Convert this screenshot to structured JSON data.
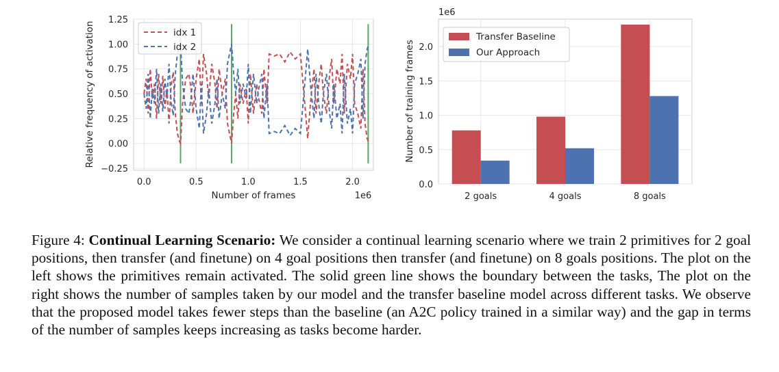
{
  "chart_data": [
    {
      "type": "line",
      "xlabel": "Number of frames",
      "ylabel": "Relative frequency of activation",
      "x_multiplier": "1e6",
      "xlim": [
        -0.1,
        2.2
      ],
      "ylim": [
        -0.27,
        1.25
      ],
      "xticks": [
        "0.0",
        "0.5",
        "1.0",
        "1.5",
        "2.0"
      ],
      "yticks": [
        "−0.25",
        "0.00",
        "0.25",
        "0.50",
        "0.75",
        "1.00",
        "1.25"
      ],
      "task_boundaries": [
        0.35,
        0.84,
        2.15
      ],
      "boundary_color": "#55a868",
      "legend": [
        "idx 1",
        "idx 2"
      ],
      "series": [
        {
          "name": "idx 1",
          "color": "#c44e52",
          "x": [
            0.0,
            0.02,
            0.04,
            0.06,
            0.08,
            0.1,
            0.12,
            0.14,
            0.16,
            0.18,
            0.2,
            0.22,
            0.24,
            0.26,
            0.28,
            0.3,
            0.32,
            0.34,
            0.35,
            0.37,
            0.4,
            0.43,
            0.45,
            0.47,
            0.5,
            0.53,
            0.55,
            0.57,
            0.6,
            0.62,
            0.65,
            0.68,
            0.7,
            0.72,
            0.75,
            0.78,
            0.8,
            0.82,
            0.84,
            0.86,
            0.88,
            0.9,
            0.92,
            0.95,
            0.98,
            1.0,
            1.02,
            1.05,
            1.08,
            1.1,
            1.13,
            1.15,
            1.18,
            1.2,
            1.25,
            1.3,
            1.35,
            1.4,
            1.45,
            1.5,
            1.55,
            1.57,
            1.6,
            1.63,
            1.65,
            1.68,
            1.7,
            1.72,
            1.75,
            1.78,
            1.8,
            1.82,
            1.85,
            1.88,
            1.9,
            1.92,
            1.95,
            1.98,
            2.0,
            2.02,
            2.05,
            2.08,
            2.1,
            2.12,
            2.14,
            2.15
          ],
          "y": [
            0.5,
            0.65,
            0.3,
            0.75,
            0.45,
            0.6,
            0.25,
            0.7,
            0.4,
            0.68,
            0.35,
            0.55,
            0.2,
            0.58,
            0.72,
            0.3,
            0.1,
            0.02,
            0.0,
            0.4,
            0.65,
            0.7,
            0.55,
            0.3,
            0.65,
            0.85,
            0.4,
            0.9,
            0.7,
            0.45,
            0.8,
            0.6,
            0.35,
            0.75,
            0.5,
            0.65,
            0.2,
            0.1,
            0.0,
            0.3,
            0.5,
            0.25,
            0.6,
            0.4,
            0.55,
            0.2,
            0.7,
            0.3,
            0.6,
            0.45,
            0.3,
            0.75,
            0.4,
            0.9,
            0.88,
            0.9,
            0.82,
            0.92,
            0.85,
            0.9,
            0.3,
            0.05,
            0.45,
            0.75,
            0.3,
            0.65,
            0.8,
            0.5,
            0.3,
            0.7,
            0.85,
            0.4,
            0.75,
            0.6,
            0.9,
            0.3,
            0.8,
            0.65,
            0.9,
            0.4,
            0.3,
            0.15,
            0.75,
            0.2,
            0.05,
            0.02
          ]
        },
        {
          "name": "idx 2",
          "color": "#4c72b0",
          "x": [
            0.0,
            0.02,
            0.04,
            0.06,
            0.08,
            0.1,
            0.12,
            0.14,
            0.16,
            0.18,
            0.2,
            0.22,
            0.24,
            0.26,
            0.28,
            0.3,
            0.32,
            0.34,
            0.35,
            0.37,
            0.4,
            0.43,
            0.45,
            0.47,
            0.5,
            0.53,
            0.55,
            0.57,
            0.6,
            0.62,
            0.65,
            0.68,
            0.7,
            0.72,
            0.75,
            0.78,
            0.8,
            0.82,
            0.84,
            0.86,
            0.88,
            0.9,
            0.92,
            0.95,
            0.98,
            1.0,
            1.02,
            1.05,
            1.08,
            1.1,
            1.13,
            1.15,
            1.18,
            1.2,
            1.25,
            1.3,
            1.35,
            1.4,
            1.45,
            1.5,
            1.55,
            1.57,
            1.6,
            1.63,
            1.65,
            1.68,
            1.7,
            1.72,
            1.75,
            1.78,
            1.8,
            1.82,
            1.85,
            1.88,
            1.9,
            1.92,
            1.95,
            1.98,
            2.0,
            2.02,
            2.05,
            2.08,
            2.1,
            2.12,
            2.14,
            2.15
          ],
          "y": [
            0.5,
            0.35,
            0.7,
            0.25,
            0.55,
            0.4,
            0.75,
            0.3,
            0.6,
            0.32,
            0.65,
            0.45,
            0.8,
            0.42,
            0.28,
            0.7,
            0.9,
            0.98,
            1.0,
            0.6,
            0.35,
            0.3,
            0.45,
            0.7,
            0.35,
            0.15,
            0.6,
            0.1,
            0.3,
            0.55,
            0.2,
            0.4,
            0.65,
            0.25,
            0.5,
            0.35,
            0.8,
            0.9,
            1.0,
            0.7,
            0.5,
            0.75,
            0.4,
            0.6,
            0.45,
            0.8,
            0.3,
            0.7,
            0.4,
            0.55,
            0.7,
            0.25,
            0.6,
            0.1,
            0.12,
            0.1,
            0.18,
            0.08,
            0.15,
            0.1,
            0.7,
            0.95,
            0.55,
            0.25,
            0.7,
            0.35,
            0.2,
            0.5,
            0.7,
            0.3,
            0.15,
            0.6,
            0.25,
            0.4,
            0.1,
            0.7,
            0.2,
            0.35,
            0.1,
            0.6,
            0.7,
            0.85,
            0.25,
            0.8,
            0.95,
            0.98
          ]
        }
      ]
    },
    {
      "type": "bar",
      "ylabel": "Number of training frames",
      "y_multiplier": "1e6",
      "ylim": [
        0,
        2.4
      ],
      "yticks": [
        "0.0",
        "0.5",
        "1.0",
        "1.5",
        "2.0"
      ],
      "categories": [
        "2 goals",
        "4 goals",
        "8 goals"
      ],
      "legend_loc": "upper left",
      "series": [
        {
          "name": "Transfer Baseline",
          "color": "#c44e52",
          "values": [
            0.78,
            0.98,
            2.32
          ]
        },
        {
          "name": "Our Approach",
          "color": "#4c72b0",
          "values": [
            0.34,
            0.52,
            1.28
          ]
        }
      ]
    }
  ],
  "caption": {
    "label": "Figure 4:",
    "title": "Continual Learning Scenario:",
    "text": "We consider a continual learning scenario where we train 2 primitives for 2 goal positions, then transfer (and finetune) on 4 goal positions then transfer (and finetune) on 8 goals positions. The plot on the left shows the primitives remain activated. The solid green line shows the boundary between the tasks, The plot on the right shows the number of samples taken by our model and the transfer baseline model across different tasks. We observe that the proposed model takes fewer steps than the baseline (an A2C policy trained in a similar way) and the gap in terms of the number of samples keeps increasing as tasks become harder."
  }
}
